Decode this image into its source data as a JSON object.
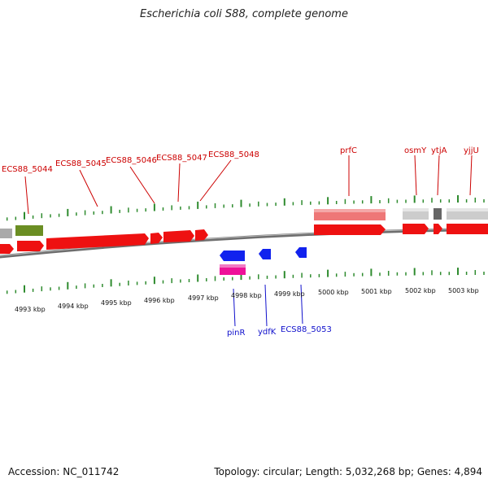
{
  "title": "Escherichia coli S88, complete genome",
  "footer": {
    "accession": "Accession: NC_011742",
    "summary": "Topology: circular; Length: 5,032,268 bp; Genes: 4,894"
  },
  "colors": {
    "cds_forward": "#ee1111",
    "gene_forward": "#ee7777",
    "cds_reverse": "#1122ee",
    "gene_reverse": "#ee1199",
    "other_gene": "#cccccc",
    "tRNA": "#6b8e23",
    "backbone": "#777777",
    "tick": "#2e8b2e",
    "label_forward": "#cc0000",
    "label_reverse": "#1010cc"
  },
  "top_labels": [
    {
      "text": "ECS88_5044"
    },
    {
      "text": "ECS88_5045"
    },
    {
      "text": "ECS88_5046"
    },
    {
      "text": "ECS88_5047"
    },
    {
      "text": "ECS88_5048"
    },
    {
      "text": "prfC"
    },
    {
      "text": "osmY"
    },
    {
      "text": "ytjA"
    },
    {
      "text": "yjjU"
    }
  ],
  "bottom_labels": [
    {
      "text": "pinR"
    },
    {
      "text": "ydfK"
    },
    {
      "text": "ECS88_5053"
    }
  ],
  "scale_labels": [
    "4993 kbp",
    "4994 kbp",
    "4995 kbp",
    "4996 kbp",
    "4997 kbp",
    "4998 kbp",
    "4999 kbp",
    "5000 kbp",
    "5001 kbp",
    "5002 kbp",
    "5003 kbp"
  ]
}
